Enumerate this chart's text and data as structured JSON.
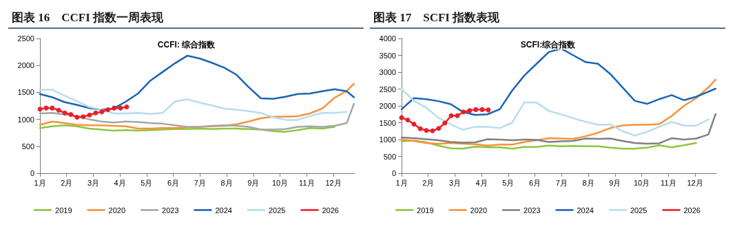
{
  "chart_data": [
    {
      "type": "line",
      "title": "图表 16　CCFI 指数一周表现",
      "subtitle": "CCFI: 综合指数",
      "x": [
        1,
        1.46,
        1.92,
        2.38,
        2.84,
        3.3,
        3.76,
        4.22,
        4.68,
        5.14,
        5.6,
        6.06,
        6.52,
        6.98,
        7.44,
        7.9,
        8.36,
        8.82,
        9.28,
        9.74,
        10.2,
        10.66,
        11.12,
        11.58,
        12.04,
        12.5,
        12.77
      ],
      "xlim": [
        1,
        12.8
      ],
      "xticks": [
        {
          "value": 1,
          "label": "1月"
        },
        {
          "value": 2,
          "label": "2月"
        },
        {
          "value": 3,
          "label": "3月"
        },
        {
          "value": 4,
          "label": "4月"
        },
        {
          "value": 5,
          "label": "5月"
        },
        {
          "value": 6,
          "label": "6月"
        },
        {
          "value": 7,
          "label": "7月"
        },
        {
          "value": 8,
          "label": "8月"
        },
        {
          "value": 9,
          "label": "9月"
        },
        {
          "value": 10,
          "label": "10月"
        },
        {
          "value": 11,
          "label": "11月"
        },
        {
          "value": 12,
          "label": "12月"
        }
      ],
      "ylim": [
        0,
        2500
      ],
      "yticks": [
        0,
        500,
        1000,
        1500,
        2000,
        2500
      ],
      "grid": false,
      "legend": "bottom",
      "marker": "none",
      "line_style": "solid",
      "series": [
        {
          "name": "2019",
          "color": "#8cc63f",
          "values": [
            840,
            870,
            890,
            870,
            830,
            810,
            790,
            800,
            790,
            800,
            810,
            820,
            820,
            830,
            820,
            830,
            830,
            820,
            810,
            780,
            770,
            800,
            840,
            830,
            860,
            null,
            null
          ]
        },
        {
          "name": "2020",
          "color": "#f7923a",
          "values": [
            900,
            960,
            930,
            900,
            890,
            890,
            880,
            870,
            830,
            830,
            840,
            840,
            850,
            860,
            870,
            880,
            910,
            960,
            1020,
            1050,
            1050,
            1060,
            1110,
            1200,
            1400,
            1530,
            1660
          ]
        },
        {
          "name": "2023",
          "color": "#a6a6a6",
          "values": [
            1110,
            1120,
            1090,
            1060,
            1000,
            960,
            940,
            960,
            950,
            930,
            920,
            890,
            860,
            860,
            880,
            890,
            880,
            860,
            810,
            810,
            820,
            860,
            870,
            860,
            880,
            930,
            1290
          ]
        },
        {
          "name": "2024",
          "color": "#1a64b4",
          "values": [
            1470,
            1410,
            1320,
            1270,
            1210,
            1180,
            1200,
            1330,
            1480,
            1720,
            1880,
            2040,
            2180,
            2130,
            2050,
            1960,
            1830,
            1600,
            1390,
            1380,
            1420,
            1470,
            1480,
            1520,
            1560,
            1520,
            1410
          ]
        },
        {
          "name": "2025",
          "color": "#b7dded",
          "values": [
            1550,
            1550,
            1440,
            1340,
            1230,
            1180,
            1110,
            1110,
            1120,
            1100,
            1120,
            1330,
            1370,
            1310,
            1260,
            1200,
            1180,
            1150,
            1120,
            1040,
            990,
            990,
            1060,
            1120,
            1120,
            1140,
            null
          ]
        },
        {
          "name": "2026",
          "color": "#e8202a",
          "marker": "circle",
          "x": [
            1,
            1.23,
            1.46,
            1.7,
            1.93,
            2.16,
            2.39,
            2.62,
            2.86,
            3.09,
            3.32,
            3.55,
            3.78,
            4.02,
            4.25
          ],
          "values": [
            1190,
            1210,
            1210,
            1170,
            1120,
            1090,
            1040,
            1050,
            1080,
            1120,
            1140,
            1180,
            1210,
            1210,
            1230
          ]
        }
      ]
    },
    {
      "type": "line",
      "title": "图表 17　SCFI 指数表现",
      "subtitle": "SCFI:综合指数",
      "x": [
        1,
        1.46,
        1.92,
        2.38,
        2.84,
        3.3,
        3.76,
        4.22,
        4.68,
        5.14,
        5.6,
        6.06,
        6.52,
        6.98,
        7.44,
        7.9,
        8.36,
        8.82,
        9.28,
        9.74,
        10.2,
        10.66,
        11.12,
        11.58,
        12.04,
        12.5,
        12.77
      ],
      "xlim": [
        1,
        12.8
      ],
      "xticks": [
        {
          "value": 1,
          "label": "1月"
        },
        {
          "value": 2,
          "label": "2月"
        },
        {
          "value": 3,
          "label": "3月"
        },
        {
          "value": 4,
          "label": "4月"
        },
        {
          "value": 5,
          "label": "5月"
        },
        {
          "value": 6,
          "label": "6月"
        },
        {
          "value": 7,
          "label": "7月"
        },
        {
          "value": 8,
          "label": "8月"
        },
        {
          "value": 9,
          "label": "9月"
        },
        {
          "value": 10,
          "label": "10月"
        },
        {
          "value": 11,
          "label": "11月"
        },
        {
          "value": 12,
          "label": "12月"
        }
      ],
      "ylim": [
        0,
        4000
      ],
      "yticks": [
        0,
        500,
        1000,
        1500,
        2000,
        2500,
        3000,
        3500,
        4000
      ],
      "grid": false,
      "legend": "bottom",
      "marker": "none",
      "line_style": "solid",
      "series": [
        {
          "name": "2019",
          "color": "#8cc63f",
          "values": [
            950,
            970,
            920,
            820,
            740,
            730,
            790,
            770,
            770,
            730,
            780,
            780,
            820,
            800,
            810,
            800,
            800,
            760,
            730,
            730,
            760,
            830,
            770,
            830,
            900,
            null,
            null
          ]
        },
        {
          "name": "2020",
          "color": "#f7923a",
          "values": [
            1000,
            960,
            900,
            870,
            900,
            880,
            860,
            820,
            850,
            850,
            930,
            980,
            1040,
            1030,
            1020,
            1100,
            1200,
            1340,
            1420,
            1440,
            1440,
            1460,
            1700,
            2000,
            2230,
            2550,
            2780
          ]
        },
        {
          "name": "2023",
          "color": "#808080",
          "values": [
            1060,
            1040,
            1010,
            980,
            930,
            910,
            920,
            1010,
            1000,
            980,
            1000,
            990,
            930,
            950,
            960,
            1030,
            1020,
            1030,
            960,
            900,
            880,
            890,
            1040,
            1000,
            1030,
            1150,
            1760
          ]
        },
        {
          "name": "2024",
          "color": "#1a64b4",
          "values": [
            1900,
            2230,
            2200,
            2140,
            2050,
            1820,
            1730,
            1750,
            1900,
            2450,
            2900,
            3250,
            3600,
            3700,
            3500,
            3300,
            3250,
            2950,
            2550,
            2150,
            2060,
            2200,
            2320,
            2170,
            2270,
            2420,
            2510
          ]
        },
        {
          "name": "2025",
          "color": "#b7dded",
          "values": [
            2500,
            2150,
            1950,
            1650,
            1450,
            1290,
            1380,
            1380,
            1340,
            1500,
            2100,
            2100,
            1850,
            1750,
            1630,
            1530,
            1440,
            1450,
            1250,
            1120,
            1230,
            1380,
            1520,
            1420,
            1410,
            1600,
            null
          ]
        },
        {
          "name": "2026",
          "color": "#e8202a",
          "marker": "circle",
          "x": [
            1,
            1.23,
            1.46,
            1.7,
            1.93,
            2.16,
            2.39,
            2.62,
            2.86,
            3.09,
            3.32,
            3.55,
            3.78,
            4.02,
            4.25
          ],
          "values": [
            1650,
            1580,
            1460,
            1320,
            1270,
            1260,
            1330,
            1490,
            1710,
            1710,
            1820,
            1860,
            1890,
            1890,
            1880
          ]
        }
      ]
    }
  ]
}
